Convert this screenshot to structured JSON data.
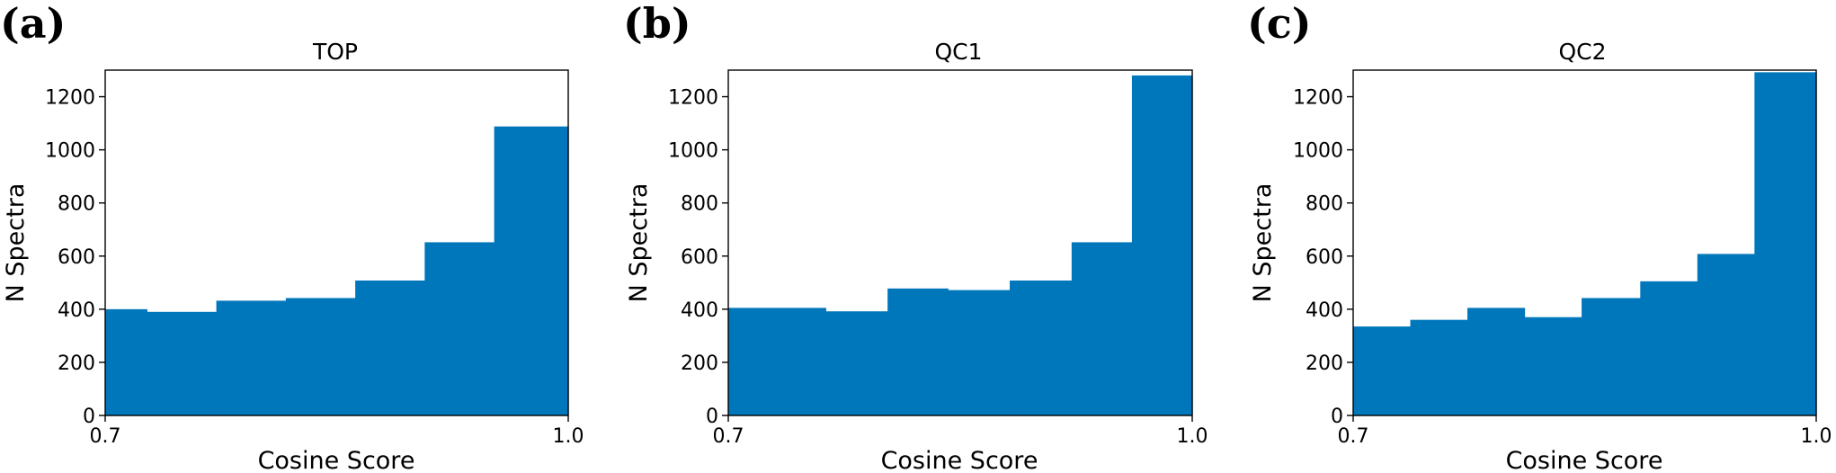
{
  "chart_data": [
    {
      "type": "bar",
      "panel": "(a)",
      "title": "TOP",
      "xlabel": "Cosine Score",
      "ylabel": "N Spectra",
      "xlim": [
        0.7,
        1.0
      ],
      "ylim": [
        0,
        1300
      ],
      "xticks": [
        "0.7",
        "1.0"
      ],
      "yticks": [
        0,
        200,
        400,
        600,
        800,
        1000,
        1200
      ],
      "color": "#0077bb",
      "bin_edges": [
        0.7,
        0.727,
        0.772,
        0.817,
        0.862,
        0.907,
        0.952,
        1.0
      ],
      "values": [
        400,
        390,
        432,
        442,
        508,
        652,
        1088
      ]
    },
    {
      "type": "bar",
      "panel": "(b)",
      "title": "QC1",
      "xlabel": "Cosine Score",
      "ylabel": "N Spectra",
      "xlim": [
        0.7,
        1.0
      ],
      "ylim": [
        0,
        1300
      ],
      "xticks": [
        "0.7",
        "1.0"
      ],
      "yticks": [
        0,
        200,
        400,
        600,
        800,
        1000,
        1200
      ],
      "color": "#0077bb",
      "bin_edges": [
        0.7,
        0.763,
        0.803,
        0.842,
        0.882,
        0.922,
        0.961,
        1.0
      ],
      "values": [
        405,
        392,
        478,
        472,
        508,
        652,
        1280
      ]
    },
    {
      "type": "bar",
      "panel": "(c)",
      "title": "QC2",
      "xlabel": "Cosine Score",
      "ylabel": "N Spectra",
      "xlim": [
        0.7,
        1.0
      ],
      "ylim": [
        0,
        1300
      ],
      "xticks": [
        "0.7",
        "1.0"
      ],
      "yticks": [
        0,
        200,
        400,
        600,
        800,
        1000,
        1200
      ],
      "color": "#0077bb",
      "bin_edges": [
        0.7,
        0.737,
        0.774,
        0.811,
        0.848,
        0.886,
        0.923,
        0.96,
        1.0
      ],
      "values": [
        335,
        360,
        405,
        370,
        442,
        505,
        608,
        1292
      ]
    }
  ]
}
